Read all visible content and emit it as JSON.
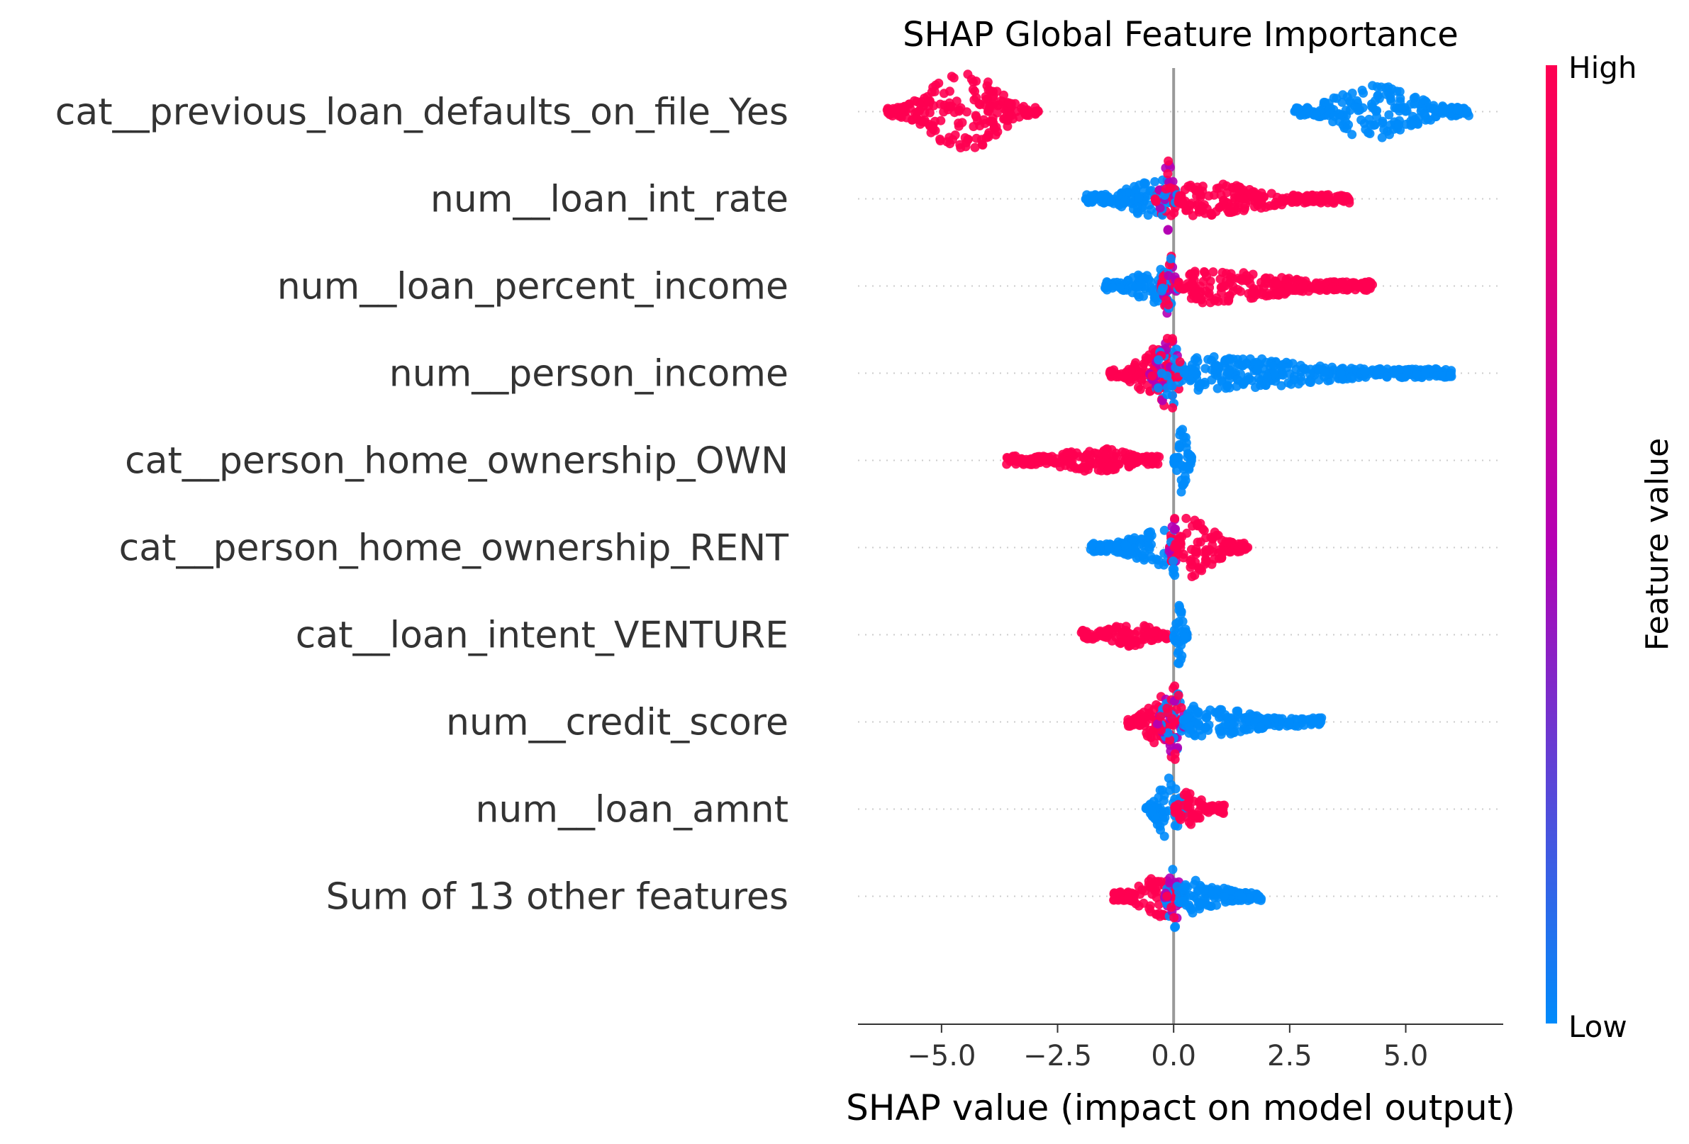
{
  "chart_data": {
    "type": "scatter",
    "subtype": "shap-beeswarm",
    "title": "SHAP Global Feature Importance",
    "xlabel": "SHAP value (impact on model output)",
    "ylabel": "",
    "xlim": [
      -6.8,
      7.1
    ],
    "x_ticks": [
      -5.0,
      -2.5,
      0.0,
      2.5,
      5.0
    ],
    "x_tick_labels": [
      "−5.0",
      "−2.5",
      "0.0",
      "2.5",
      "5.0"
    ],
    "zero_line": 0,
    "grid": false,
    "colors": {
      "high": "#ff0051",
      "low": "#008bfb",
      "mid": "#b400b4",
      "zero_line": "#999999",
      "row_guide": "#cccccc"
    },
    "colorbar": {
      "title": "Feature value",
      "high_label": "High",
      "low_label": "Low",
      "placement": "right"
    },
    "features": [
      {
        "name": "cat__previous_loan_defaults_on_file_Yes",
        "clusters": [
          {
            "from": -6.2,
            "to": -2.9,
            "peak": -4.5,
            "height": 0.46,
            "value": "high"
          },
          {
            "from": 2.6,
            "to": 6.4,
            "peak": 4.2,
            "height": 0.32,
            "value": "low"
          }
        ]
      },
      {
        "name": "num__loan_int_rate",
        "clusters": [
          {
            "from": -1.9,
            "to": 0.0,
            "peak": -0.4,
            "height": 0.22,
            "value": "low"
          },
          {
            "from": -0.4,
            "to": 0.1,
            "peak": -0.1,
            "height": 0.45,
            "value": "mid"
          },
          {
            "from": 0.1,
            "to": 3.8,
            "peak": 0.3,
            "height": 0.2,
            "value": "high"
          }
        ]
      },
      {
        "name": "num__loan_percent_income",
        "clusters": [
          {
            "from": -1.5,
            "to": 0.0,
            "peak": -0.3,
            "height": 0.2,
            "value": "low"
          },
          {
            "from": -0.3,
            "to": 0.1,
            "peak": -0.1,
            "height": 0.45,
            "value": "mid"
          },
          {
            "from": 0.1,
            "to": 4.3,
            "peak": 0.5,
            "height": 0.2,
            "value": "high"
          }
        ]
      },
      {
        "name": "num__person_income",
        "clusters": [
          {
            "from": -1.4,
            "to": 0.1,
            "peak": -0.3,
            "height": 0.3,
            "value": "high"
          },
          {
            "from": -0.6,
            "to": 0.3,
            "peak": -0.1,
            "height": 0.45,
            "value": "mid"
          },
          {
            "from": 0.2,
            "to": 6.0,
            "peak": 0.5,
            "height": 0.2,
            "value": "low"
          }
        ]
      },
      {
        "name": "cat__person_home_ownership_OWN",
        "clusters": [
          {
            "from": -3.6,
            "to": -0.3,
            "peak": -1.5,
            "height": 0.14,
            "value": "high"
          },
          {
            "from": 0.0,
            "to": 0.4,
            "peak": 0.2,
            "height": 0.42,
            "value": "low"
          }
        ]
      },
      {
        "name": "cat__person_home_ownership_RENT",
        "clusters": [
          {
            "from": -1.8,
            "to": 0.0,
            "peak": -0.2,
            "height": 0.2,
            "value": "low"
          },
          {
            "from": -0.1,
            "to": 0.1,
            "peak": 0.0,
            "height": 0.4,
            "value": "mid"
          },
          {
            "from": 0.0,
            "to": 1.6,
            "peak": 0.3,
            "height": 0.35,
            "value": "high"
          }
        ]
      },
      {
        "name": "cat__loan_intent_VENTURE",
        "clusters": [
          {
            "from": -2.0,
            "to": -0.1,
            "peak": -0.8,
            "height": 0.14,
            "value": "high"
          },
          {
            "from": 0.0,
            "to": 0.3,
            "peak": 0.1,
            "height": 0.42,
            "value": "low"
          }
        ]
      },
      {
        "name": "num__credit_score",
        "clusters": [
          {
            "from": -1.0,
            "to": 0.1,
            "peak": -0.2,
            "height": 0.3,
            "value": "high"
          },
          {
            "from": -0.4,
            "to": 0.3,
            "peak": 0.0,
            "height": 0.45,
            "value": "mid"
          },
          {
            "from": 0.2,
            "to": 3.2,
            "peak": 0.4,
            "height": 0.18,
            "value": "low"
          }
        ]
      },
      {
        "name": "num__loan_amnt",
        "clusters": [
          {
            "from": -0.6,
            "to": 0.3,
            "peak": -0.1,
            "height": 0.4,
            "value": "low"
          },
          {
            "from": 0.0,
            "to": 1.1,
            "peak": 0.2,
            "height": 0.2,
            "value": "high"
          }
        ]
      },
      {
        "name": "Sum of 13 other features",
        "clusters": [
          {
            "from": -1.3,
            "to": 0.0,
            "peak": -0.2,
            "height": 0.25,
            "value": "high"
          },
          {
            "from": -0.2,
            "to": 0.2,
            "peak": 0.0,
            "height": 0.45,
            "value": "mid"
          },
          {
            "from": 0.1,
            "to": 1.9,
            "peak": 0.3,
            "height": 0.2,
            "value": "low"
          }
        ]
      }
    ]
  }
}
